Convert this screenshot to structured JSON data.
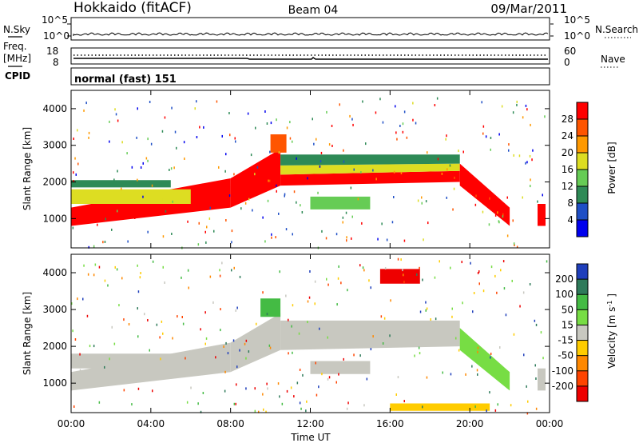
{
  "header": {
    "station": "Hokkaido (fitACF)",
    "beam": "Beam 04",
    "date": "09/Mar/2011"
  },
  "noise_panel": {
    "left_label": "N.Sky",
    "right_label": "N.Search",
    "left_top": "10^5",
    "left_bottom": "10^0",
    "right_top": "10^5",
    "right_bottom": "10^0"
  },
  "freq_panel": {
    "left_label_1": "Freq.",
    "left_label_2": "[MHz]",
    "left_top": "18",
    "left_bottom": "8",
    "right_label": "Nave",
    "right_top": "60",
    "right_bottom": "0"
  },
  "cpid_panel": {
    "label": "CPID",
    "text": "normal (fast) 151"
  },
  "chart_data": [
    {
      "type": "heatmap",
      "name": "power",
      "ylabel": "Slant Range [km]",
      "yticks": [
        "1000",
        "2000",
        "3000",
        "4000"
      ],
      "ylim": [
        200,
        4500
      ],
      "xlim": [
        0,
        24
      ],
      "colorbar_label": "Power [dB]",
      "colorbar_ticks": [
        "4",
        "8",
        "12",
        "16",
        "20",
        "24",
        "28"
      ],
      "colors": [
        "#0000ee",
        "#1f4fc6",
        "#2e8a56",
        "#66cc55",
        "#dddd22",
        "#ff9900",
        "#ff5500",
        "#ff0000"
      ],
      "bands": [
        {
          "t0": 0.0,
          "t1": 8.0,
          "r0": 800,
          "r1": 1300,
          "r0_end": 1300,
          "r1_end": 2100,
          "level": 7
        },
        {
          "t0": 8.0,
          "t1": 10.5,
          "r0": 1300,
          "r1": 2100,
          "r0_end": 1900,
          "r1_end": 2900,
          "level": 7
        },
        {
          "t0": 0.0,
          "t1": 6.0,
          "r0": 1400,
          "r1": 1800,
          "r0_end": 1400,
          "r1_end": 1800,
          "level": 4
        },
        {
          "t0": 0.0,
          "t1": 5.0,
          "r0": 1850,
          "r1": 2050,
          "r0_end": 1850,
          "r1_end": 2050,
          "level": 2
        },
        {
          "t0": 10.5,
          "t1": 19.5,
          "r0": 1900,
          "r1": 2200,
          "r0_end": 2000,
          "r1_end": 2300,
          "level": 7
        },
        {
          "t0": 10.5,
          "t1": 19.5,
          "r0": 2200,
          "r1": 2450,
          "r0_end": 2300,
          "r1_end": 2500,
          "level": 4
        },
        {
          "t0": 10.5,
          "t1": 19.5,
          "r0": 2450,
          "r1": 2750,
          "r0_end": 2500,
          "r1_end": 2750,
          "level": 2
        },
        {
          "t0": 19.5,
          "t1": 22.0,
          "r0": 1900,
          "r1": 2500,
          "r0_end": 800,
          "r1_end": 1300,
          "level": 7
        },
        {
          "t0": 12.0,
          "t1": 15.0,
          "r0": 1250,
          "r1": 1600,
          "r0_end": 1250,
          "r1_end": 1600,
          "level": 3
        },
        {
          "t0": 10.0,
          "t1": 10.8,
          "r0": 2800,
          "r1": 3300,
          "r0_end": 2800,
          "r1_end": 3300,
          "level": 6
        },
        {
          "t0": 23.4,
          "t1": 23.8,
          "r0": 800,
          "r1": 1400,
          "r0_end": 800,
          "r1_end": 1400,
          "level": 7
        }
      ]
    },
    {
      "type": "heatmap",
      "name": "velocity",
      "ylabel": "Slant Range [km]",
      "yticks": [
        "1000",
        "2000",
        "3000",
        "4000"
      ],
      "ylim": [
        200,
        4500
      ],
      "xlim": [
        0,
        24
      ],
      "xticks": [
        "00:00",
        "04:00",
        "08:00",
        "12:00",
        "16:00",
        "20:00",
        "00:00"
      ],
      "xlabel": "Time UT",
      "colorbar_label": "Velocity [m s^-1]",
      "colorbar_ticks": [
        "200",
        "100",
        "50",
        "15",
        "-15",
        "-50",
        "-100",
        "-200"
      ],
      "colors": [
        "#1f3fbb",
        "#2e7a5a",
        "#44bb44",
        "#77dd44",
        "#c8c8c0",
        "#ffcc00",
        "#ff8800",
        "#ff4400",
        "#ee0000"
      ],
      "bands": [
        {
          "t0": 0.0,
          "t1": 8.0,
          "r0": 800,
          "r1": 1300,
          "r0_end": 1300,
          "r1_end": 2100,
          "level": 4
        },
        {
          "t0": 0.0,
          "t1": 6.0,
          "r0": 1400,
          "r1": 1800,
          "r0_end": 1400,
          "r1_end": 1800,
          "level": 4
        },
        {
          "t0": 8.0,
          "t1": 10.5,
          "r0": 1300,
          "r1": 2100,
          "r0_end": 1900,
          "r1_end": 2900,
          "level": 4
        },
        {
          "t0": 10.5,
          "t1": 19.5,
          "r0": 1900,
          "r1": 2700,
          "r0_end": 2000,
          "r1_end": 2700,
          "level": 4
        },
        {
          "t0": 12.0,
          "t1": 15.0,
          "r0": 1250,
          "r1": 1600,
          "r0_end": 1250,
          "r1_end": 1600,
          "level": 4
        },
        {
          "t0": 19.5,
          "t1": 22.0,
          "r0": 1900,
          "r1": 2500,
          "r0_end": 800,
          "r1_end": 1300,
          "level": 3
        },
        {
          "t0": 9.5,
          "t1": 10.5,
          "r0": 2800,
          "r1": 3300,
          "r0_end": 2800,
          "r1_end": 3300,
          "level": 2
        },
        {
          "t0": 15.5,
          "t1": 17.5,
          "r0": 3700,
          "r1": 4100,
          "r0_end": 3700,
          "r1_end": 4100,
          "level": 8
        },
        {
          "t0": 16.0,
          "t1": 21.0,
          "r0": 250,
          "r1": 450,
          "r0_end": 250,
          "r1_end": 450,
          "level": 5
        },
        {
          "t0": 23.4,
          "t1": 23.8,
          "r0": 800,
          "r1": 1400,
          "r0_end": 800,
          "r1_end": 1400,
          "level": 4
        }
      ]
    }
  ]
}
